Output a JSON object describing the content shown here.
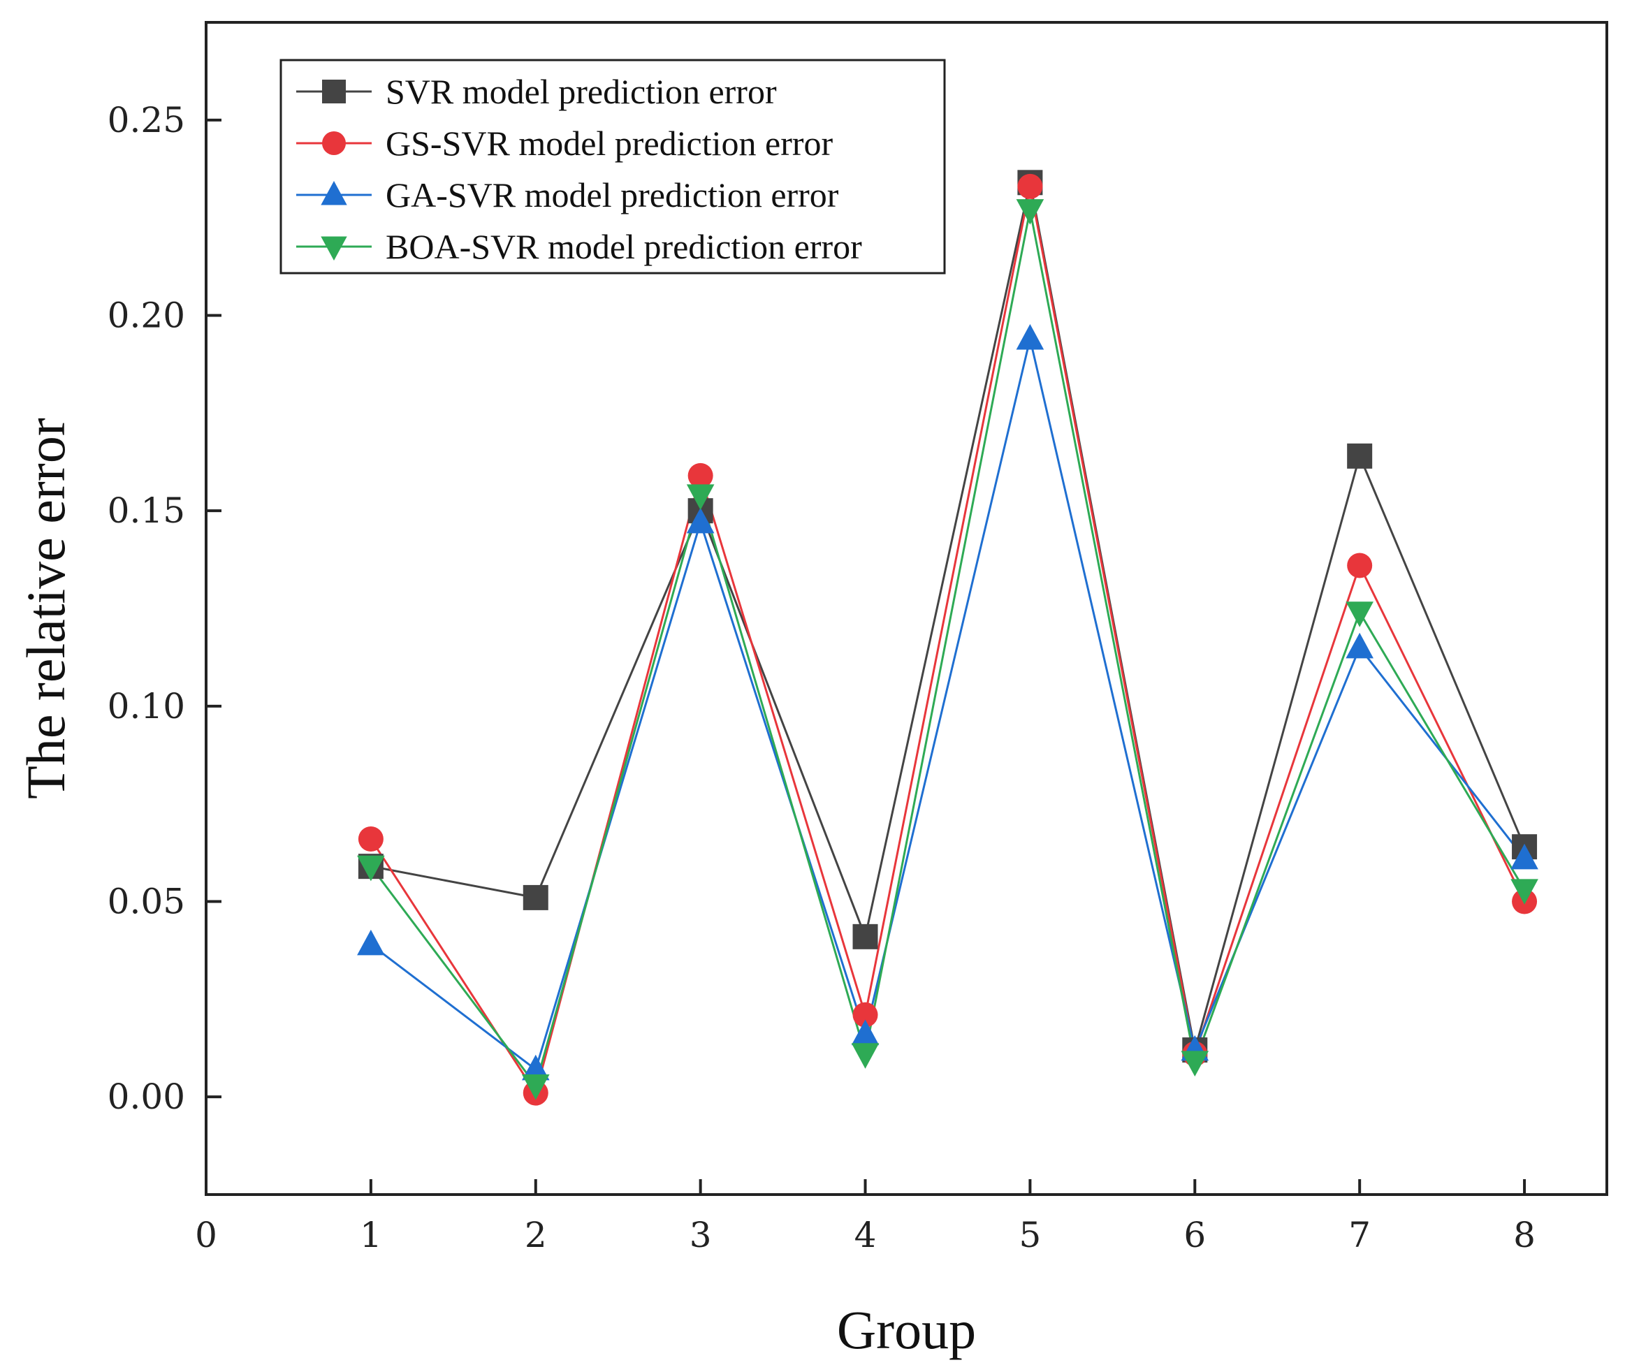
{
  "chart_data": {
    "type": "line",
    "title": "",
    "xlabel": "Group",
    "ylabel": "The relative error",
    "xlim": [
      0,
      8.5
    ],
    "ylim": [
      -0.025,
      0.275
    ],
    "x_ticks": [
      0,
      1,
      2,
      3,
      4,
      5,
      6,
      7,
      8
    ],
    "x_tick_labels": [
      "0",
      "1",
      "2",
      "3",
      "4",
      "5",
      "6",
      "7",
      "8"
    ],
    "y_ticks": [
      0,
      0.05,
      0.1,
      0.15,
      0.2,
      0.25
    ],
    "y_tick_labels": [
      "0.00",
      "0.05",
      "0.10",
      "0.15",
      "0.20",
      "0.25"
    ],
    "grid": false,
    "legend_position": "top-left",
    "x": [
      1,
      2,
      3,
      4,
      5,
      6,
      7,
      8
    ],
    "series": [
      {
        "name": "SVR model prediction error",
        "color": "#444444",
        "marker": "square",
        "values": [
          0.059,
          0.051,
          0.15,
          0.041,
          0.234,
          0.012,
          0.164,
          0.064
        ]
      },
      {
        "name": "GS-SVR model prediction error",
        "color": "#e8363b",
        "marker": "circle",
        "values": [
          0.066,
          0.001,
          0.159,
          0.021,
          0.233,
          0.011,
          0.136,
          0.05
        ]
      },
      {
        "name": "GA-SVR model prediction error",
        "color": "#1f6fd1",
        "marker": "triangle-up",
        "values": [
          0.039,
          0.007,
          0.147,
          0.016,
          0.194,
          0.012,
          0.115,
          0.061
        ]
      },
      {
        "name": "BOA-SVR model prediction error",
        "color": "#2eaa55",
        "marker": "triangle-down",
        "values": [
          0.059,
          0.003,
          0.154,
          0.011,
          0.227,
          0.009,
          0.124,
          0.053
        ]
      }
    ]
  }
}
